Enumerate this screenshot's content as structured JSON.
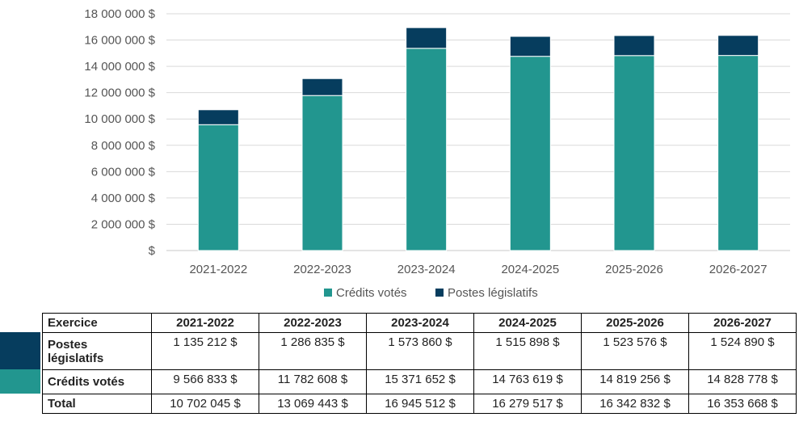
{
  "chart_data": {
    "type": "bar",
    "stacked": true,
    "categories": [
      "2021-2022",
      "2022-2023",
      "2023-2024",
      "2024-2025",
      "2025-2026",
      "2026-2027"
    ],
    "series": [
      {
        "name": "Crédits votés",
        "color": "#22968f",
        "values": [
          9566833,
          11782608,
          15371652,
          14763619,
          14819256,
          14828778
        ]
      },
      {
        "name": "Postes législatifs",
        "color": "#063d5e",
        "values": [
          1135212,
          1286835,
          1573860,
          1515898,
          1523576,
          1524890
        ]
      }
    ],
    "yticks": [
      "18 000 000 $",
      "16 000 000 $",
      "14 000 000 $",
      "12 000 000 $",
      "10 000 000 $",
      "8 000 000 $",
      "6 000 000 $",
      "4 000 000 $",
      "2 000 000 $",
      "$"
    ],
    "ylim": [
      0,
      18000000
    ],
    "grid": true,
    "legend_position": "bottom"
  },
  "table": {
    "header": [
      "Exercice",
      "2021-2022",
      "2022-2023",
      "2023-2024",
      "2024-2025",
      "2025-2026",
      "2026-2027"
    ],
    "rows": [
      {
        "label": "Postes législatifs",
        "color": "#063d5e",
        "values": [
          "1 135 212 $",
          "1 286 835 $",
          "1 573 860 $",
          "1 515 898 $",
          "1 523 576 $",
          "1 524 890 $"
        ]
      },
      {
        "label": "Crédits votés",
        "color": "#22968f",
        "values": [
          "9 566 833 $",
          "11 782 608 $",
          "15 371 652 $",
          "14 763 619 $",
          "14 819 256 $",
          "14 828 778 $"
        ]
      },
      {
        "label": "Total",
        "values": [
          "10 702 045  $",
          "13 069 443 $",
          "16 945 512 $",
          "16 279 517 $",
          "16 342 832 $",
          "16 353 668 $"
        ]
      }
    ]
  }
}
